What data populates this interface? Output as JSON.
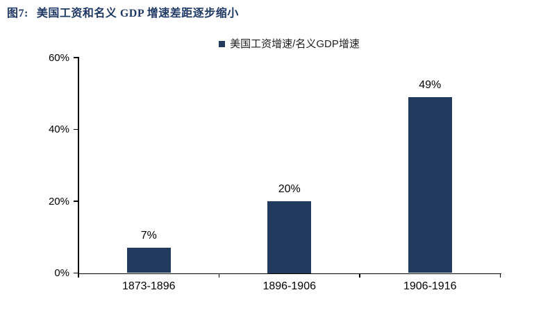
{
  "figure": {
    "label": "图7:",
    "title": "美国工资和名义 GDP 增速差距逐步缩小"
  },
  "chart_data": {
    "type": "bar",
    "title": "",
    "legend_label": "美国工资增速/名义GDP增速",
    "legend_position": "top-center",
    "categories": [
      "1873-1896",
      "1896-1906",
      "1906-1916"
    ],
    "values": [
      7,
      20,
      49
    ],
    "value_labels": [
      "7%",
      "20%",
      "49%"
    ],
    "ylim": [
      0,
      60
    ],
    "ytick_values": [
      0,
      20,
      40,
      60
    ],
    "ytick_labels": [
      "0%",
      "20%",
      "40%",
      "60%"
    ],
    "grid": false,
    "xlabel": "",
    "ylabel": ""
  },
  "colors": {
    "title": "#1f3864",
    "bar": "#213a5e",
    "legend_marker": "#213a5e",
    "axis": "#000000",
    "text": "#000000",
    "background": "#ffffff"
  }
}
